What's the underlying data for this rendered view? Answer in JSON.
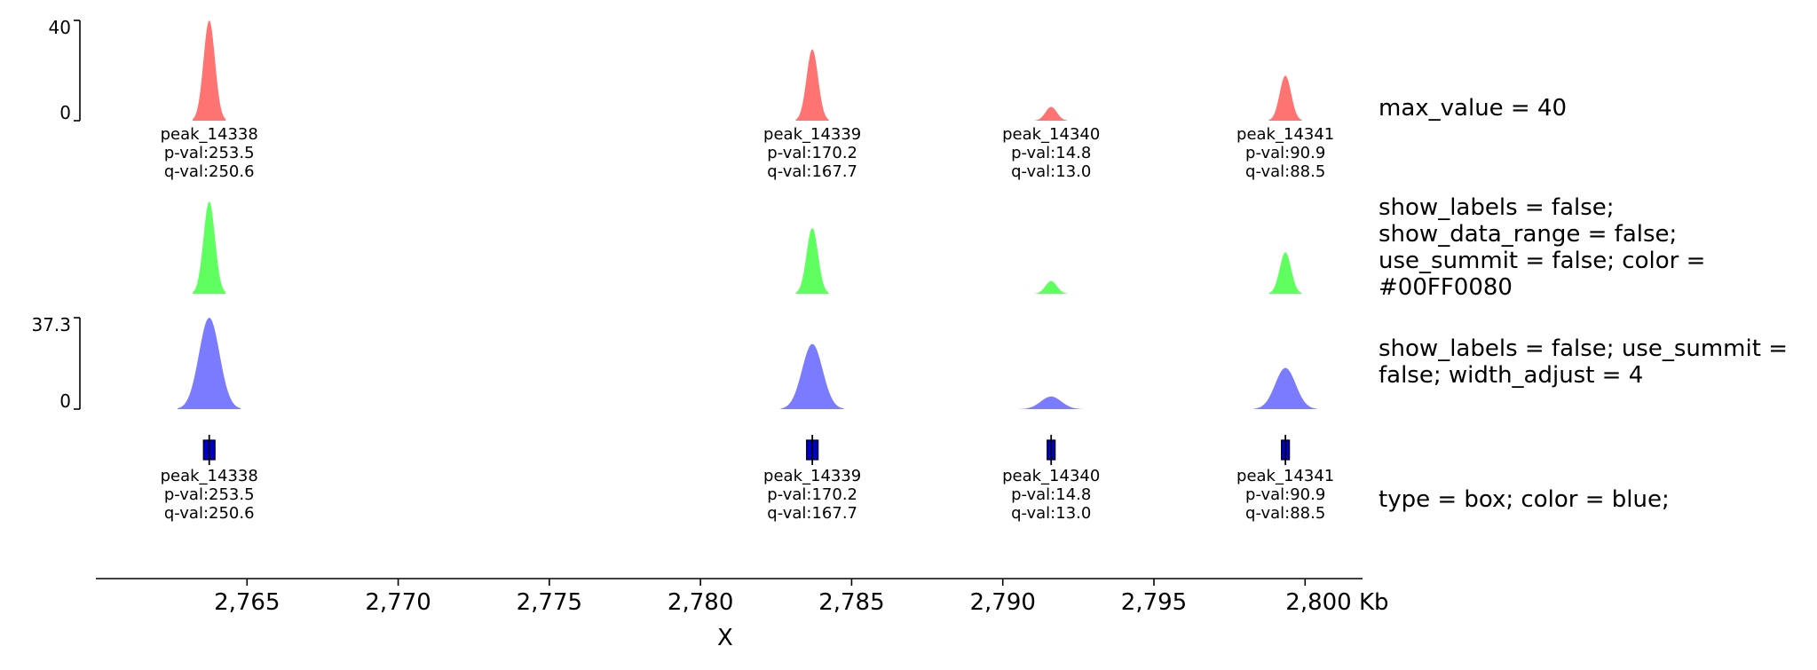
{
  "chart_data": {
    "type": "area",
    "x_unit": "Kb",
    "xlim": [
      2760.0,
      2801.9
    ],
    "xticks": [
      2765,
      2770,
      2775,
      2780,
      2785,
      2790,
      2795,
      2800
    ],
    "xtick_labels": [
      "2,765",
      "2,770",
      "2,775",
      "2,780",
      "2,785",
      "2,790",
      "2,795",
      "2,800 Kb"
    ],
    "xlabel": "X",
    "peaks": [
      {
        "name": "peak_14338",
        "summit_kb": 2763.75,
        "p_val": "p-val:253.5",
        "q_val": "q-val:250.6",
        "height": 40.0
      },
      {
        "name": "peak_14339",
        "summit_kb": 2783.7,
        "p_val": "p-val:170.2",
        "q_val": "q-val:167.7",
        "height": 28.5
      },
      {
        "name": "peak_14340",
        "summit_kb": 2791.6,
        "p_val": "p-val:14.8",
        "q_val": "q-val:13.0",
        "height": 5.5
      },
      {
        "name": "peak_14341",
        "summit_kb": 2799.35,
        "p_val": "p-val:90.9",
        "q_val": "q-val:88.5",
        "height": 18.0
      }
    ],
    "tracks": [
      {
        "type": "peaks",
        "color": "#ff5a5a",
        "show_labels": true,
        "show_data_range": true,
        "data_range": {
          "min_label": "0",
          "max_label": "40",
          "min": 0,
          "max": 40
        },
        "note": "max_value = 40"
      },
      {
        "type": "peaks",
        "color": "#44ff44",
        "show_labels": false,
        "show_data_range": false,
        "note": "show_labels = false;\nshow_data_range = false;\nuse_summit = false; color =\n#00FF0080"
      },
      {
        "type": "peaks",
        "color": "#5a5aff",
        "show_labels": false,
        "show_data_range": true,
        "data_range": {
          "min_label": "0",
          "max_label": "37.3",
          "min": 0,
          "max": 37.3
        },
        "note": "show_labels = false; use_summit =\nfalse; width_adjust = 4"
      },
      {
        "type": "box",
        "color": "#0000cc",
        "show_labels": true,
        "note": "type = box; color = blue;"
      }
    ]
  }
}
